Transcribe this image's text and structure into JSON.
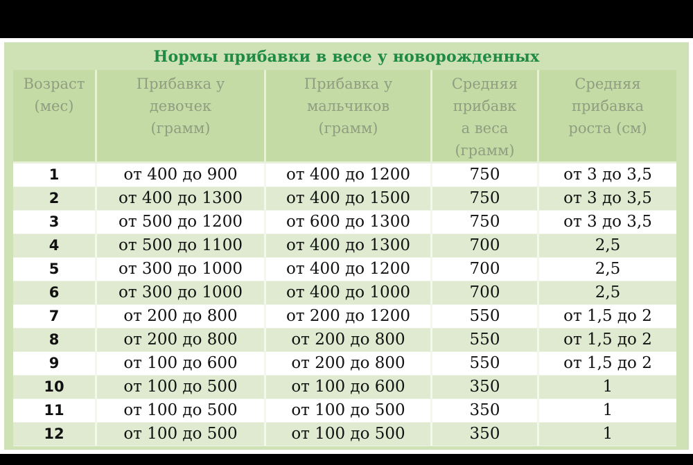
{
  "title": "Нормы прибавки в весе у новорожденных",
  "headers": [
    "Возраст\n(мес)",
    "Прибавка у\nдевочек\n(грамм)",
    "Прибавка у\nмальчиков\n(грамм)",
    "Средняя\nприбавк\nа веса\n(грамм)",
    "Средняя\nприбавка\nроста (см)"
  ],
  "rows": [
    [
      "1",
      "от 400 до 900",
      "от 400 до 1200",
      "750",
      "от 3 до 3,5"
    ],
    [
      "2",
      "от 400 до 1300",
      "от 400 до 1500",
      "750",
      "от 3 до 3,5"
    ],
    [
      "3",
      "от 500 до 1200",
      "от 600 до 1300",
      "750",
      "от 3 до 3,5"
    ],
    [
      "4",
      "от 500 до 1100",
      "от 400 до 1300",
      "700",
      "2,5"
    ],
    [
      "5",
      "от 300 до 1000",
      "от 400 до 1200",
      "700",
      "2,5"
    ],
    [
      "6",
      "от 300 до 1000",
      "от 400 до 1000",
      "700",
      "2,5"
    ],
    [
      "7",
      "от 200 до 800",
      "от 200 до 1200",
      "550",
      "от 1,5 до 2"
    ],
    [
      "8",
      "от 200 до 800",
      "от 200 до 800",
      "550",
      "от 1,5 до 2"
    ],
    [
      "9",
      "от 100 до 600",
      "от 200 до 800",
      "550",
      "от 1,5 до 2"
    ],
    [
      "10",
      "от 100 до 500",
      "от 100 до 600",
      "350",
      "1"
    ],
    [
      "11",
      "от 100 до 500",
      "от 100 до 500",
      "350",
      "1"
    ],
    [
      "12",
      "от 100 до 500",
      "от 100 до 500",
      "350",
      "1"
    ]
  ],
  "colors": {
    "title": "#1e8a43",
    "header_bg": "#c4dba5",
    "header_text": "#8f9e80",
    "row_light": "#ffffff",
    "row_green": "#dfead0"
  }
}
